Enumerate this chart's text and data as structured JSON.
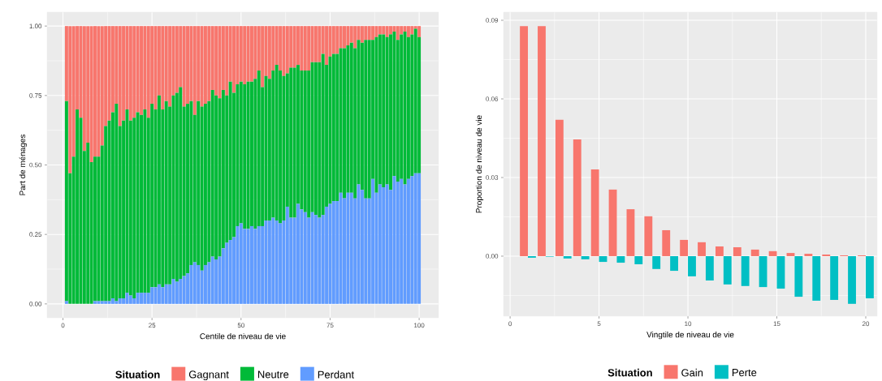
{
  "chart_data": [
    {
      "type": "bar",
      "stacked": true,
      "xlabel": "Centile de niveau de vie",
      "ylabel": "Part de ménages",
      "legend_title": "Situation",
      "legend": "bottom",
      "grid": true,
      "x": [
        1,
        2,
        3,
        4,
        5,
        6,
        7,
        8,
        9,
        10,
        11,
        12,
        13,
        14,
        15,
        16,
        17,
        18,
        19,
        20,
        21,
        22,
        23,
        24,
        25,
        26,
        27,
        28,
        29,
        30,
        31,
        32,
        33,
        34,
        35,
        36,
        37,
        38,
        39,
        40,
        41,
        42,
        43,
        44,
        45,
        46,
        47,
        48,
        49,
        50,
        51,
        52,
        53,
        54,
        55,
        56,
        57,
        58,
        59,
        60,
        61,
        62,
        63,
        64,
        65,
        66,
        67,
        68,
        69,
        70,
        71,
        72,
        73,
        74,
        75,
        76,
        77,
        78,
        79,
        80,
        81,
        82,
        83,
        84,
        85,
        86,
        87,
        88,
        89,
        90,
        91,
        92,
        93,
        94,
        95,
        96,
        97,
        98,
        99,
        100
      ],
      "xlim": [
        -4.45,
        105.45
      ],
      "xticks": [
        0,
        25,
        50,
        75,
        100
      ],
      "ylim": [
        -0.05,
        1.05
      ],
      "yticks": [
        {
          "value": 0,
          "label": "0.00"
        },
        {
          "value": 0.25,
          "label": "0.25"
        },
        {
          "value": 0.5,
          "label": "0.50"
        },
        {
          "value": 0.75,
          "label": "0.75"
        },
        {
          "value": 1,
          "label": "1.00"
        }
      ],
      "series": [
        {
          "name": "Perdant",
          "color": "#619cff",
          "values": [
            0.01,
            0,
            0,
            0,
            0,
            0,
            0,
            0,
            0.01,
            0.01,
            0.01,
            0.01,
            0.01,
            0.02,
            0.01,
            0.02,
            0.02,
            0.04,
            0.03,
            0.02,
            0.04,
            0.04,
            0.04,
            0.04,
            0.06,
            0.06,
            0.07,
            0.06,
            0.07,
            0.07,
            0.09,
            0.08,
            0.09,
            0.1,
            0.11,
            0.14,
            0.15,
            0.14,
            0.12,
            0.14,
            0.15,
            0.17,
            0.16,
            0.17,
            0.2,
            0.22,
            0.23,
            0.24,
            0.28,
            0.29,
            0.27,
            0.27,
            0.28,
            0.27,
            0.28,
            0.28,
            0.3,
            0.3,
            0.31,
            0.3,
            0.29,
            0.3,
            0.35,
            0.31,
            0.31,
            0.36,
            0.34,
            0.33,
            0.31,
            0.33,
            0.32,
            0.31,
            0.32,
            0.35,
            0.36,
            0.37,
            0.37,
            0.4,
            0.38,
            0.4,
            0.4,
            0.38,
            0.43,
            0.41,
            0.38,
            0.38,
            0.45,
            0.4,
            0.43,
            0.42,
            0.43,
            0.41,
            0.46,
            0.44,
            0.45,
            0.43,
            0.45,
            0.46,
            0.47,
            0.47
          ]
        },
        {
          "name": "Neutre",
          "color": "#00ba38",
          "values": [
            0.72,
            0.47,
            0.53,
            0.7,
            0.67,
            0.55,
            0.58,
            0.51,
            0.52,
            0.52,
            0.56,
            0.63,
            0.65,
            0.67,
            0.71,
            0.62,
            0.64,
            0.66,
            0.63,
            0.65,
            0.65,
            0.64,
            0.66,
            0.63,
            0.66,
            0.64,
            0.68,
            0.64,
            0.66,
            0.64,
            0.66,
            0.68,
            0.69,
            0.61,
            0.61,
            0.59,
            0.53,
            0.59,
            0.59,
            0.58,
            0.58,
            0.6,
            0.59,
            0.57,
            0.57,
            0.53,
            0.57,
            0.52,
            0.51,
            0.51,
            0.52,
            0.53,
            0.52,
            0.54,
            0.56,
            0.5,
            0.52,
            0.51,
            0.53,
            0.56,
            0.55,
            0.52,
            0.48,
            0.54,
            0.54,
            0.5,
            0.5,
            0.51,
            0.53,
            0.54,
            0.55,
            0.56,
            0.58,
            0.51,
            0.53,
            0.53,
            0.53,
            0.52,
            0.54,
            0.53,
            0.54,
            0.54,
            0.52,
            0.53,
            0.57,
            0.57,
            0.5,
            0.56,
            0.54,
            0.55,
            0.53,
            0.56,
            0.52,
            0.51,
            0.52,
            0.55,
            0.51,
            0.51,
            0.52,
            0.49
          ]
        },
        {
          "name": "Gagnant",
          "color": "#f8766d",
          "values": [
            0.27,
            0.53,
            0.47,
            0.3,
            0.33,
            0.45,
            0.42,
            0.49,
            0.47,
            0.47,
            0.43,
            0.36,
            0.34,
            0.31,
            0.28,
            0.36,
            0.34,
            0.3,
            0.34,
            0.33,
            0.31,
            0.32,
            0.3,
            0.33,
            0.28,
            0.3,
            0.25,
            0.3,
            0.27,
            0.29,
            0.25,
            0.24,
            0.22,
            0.29,
            0.28,
            0.27,
            0.32,
            0.27,
            0.29,
            0.28,
            0.27,
            0.23,
            0.25,
            0.26,
            0.23,
            0.25,
            0.2,
            0.24,
            0.21,
            0.2,
            0.21,
            0.2,
            0.2,
            0.19,
            0.16,
            0.22,
            0.18,
            0.19,
            0.16,
            0.14,
            0.16,
            0.18,
            0.17,
            0.15,
            0.15,
            0.14,
            0.16,
            0.16,
            0.16,
            0.13,
            0.13,
            0.13,
            0.1,
            0.14,
            0.11,
            0.1,
            0.1,
            0.08,
            0.08,
            0.07,
            0.06,
            0.08,
            0.05,
            0.06,
            0.05,
            0.05,
            0.05,
            0.04,
            0.03,
            0.03,
            0.04,
            0.03,
            0.02,
            0.05,
            0.03,
            0.02,
            0.04,
            0.03,
            0.01,
            0.04
          ]
        }
      ]
    },
    {
      "type": "bar",
      "xlabel": "Vingtile de niveau de vie",
      "ylabel": "Proportion de niveau de vie",
      "legend_title": "Situation",
      "legend": "bottom",
      "grid": true,
      "x": [
        1,
        2,
        3,
        4,
        5,
        6,
        7,
        8,
        9,
        10,
        11,
        12,
        13,
        14,
        15,
        16,
        17,
        18,
        19,
        20
      ],
      "xlim": [
        -0.37,
        20.64
      ],
      "xticks": [
        0,
        5,
        10,
        15,
        20
      ],
      "ylim": [
        -0.0229,
        0.0931
      ],
      "yticks": [
        {
          "value": 0,
          "label": "0.00"
        },
        {
          "value": 0.03,
          "label": "0.03"
        },
        {
          "value": 0.06,
          "label": "0.06"
        },
        {
          "value": 0.09,
          "label": "0.09"
        }
      ],
      "series": [
        {
          "name": "Gain",
          "color": "#f8766d",
          "values": [
            0.0878,
            0.0878,
            0.052,
            0.0445,
            0.0331,
            0.0254,
            0.0179,
            0.0152,
            0.0099,
            0.0062,
            0.0053,
            0.0037,
            0.0034,
            0.0025,
            0.0019,
            0.0012,
            0.0009,
            0.0006,
            0.0003,
            0.0003
          ]
        },
        {
          "name": "Perte",
          "color": "#00bfc4",
          "values": [
            -0.0006,
            -0.0002,
            -0.0009,
            -0.0012,
            -0.0022,
            -0.0025,
            -0.0031,
            -0.0049,
            -0.0056,
            -0.0077,
            -0.0093,
            -0.0108,
            -0.0114,
            -0.0118,
            -0.0124,
            -0.0155,
            -0.017,
            -0.0167,
            -0.0182,
            -0.0161
          ]
        }
      ]
    }
  ]
}
